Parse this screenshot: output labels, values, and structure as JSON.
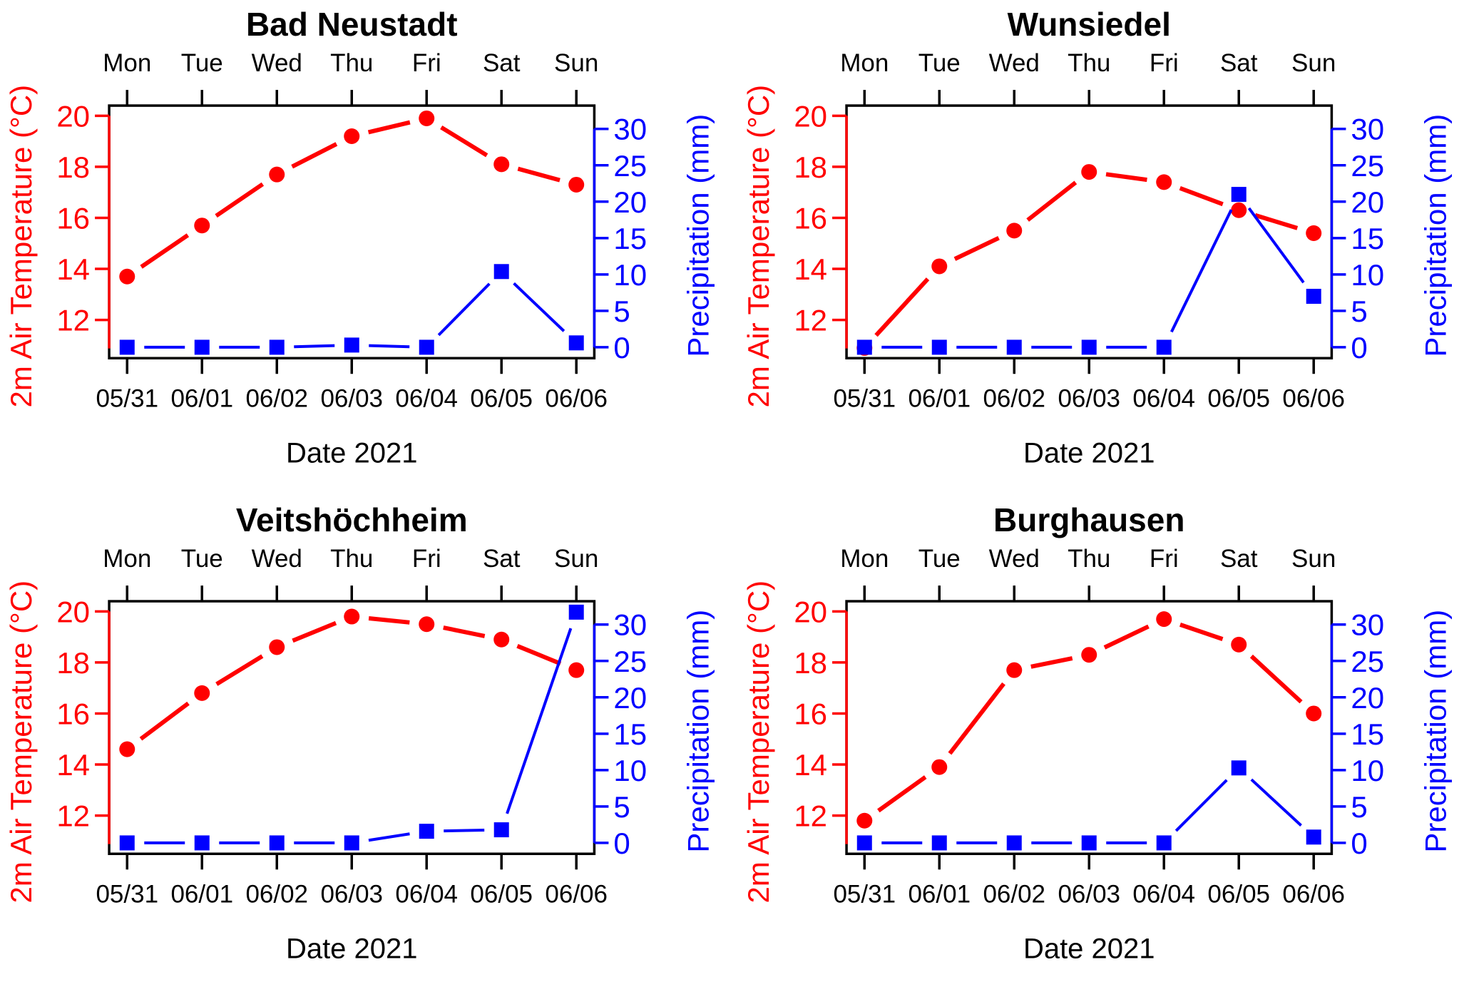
{
  "page": {
    "background": "#ffffff"
  },
  "shared": {
    "xlabel": "Date 2021",
    "ylabel_left": "2m Air Temperature (°C)",
    "ylabel_right": "Precipitation (mm)",
    "weekday_labels": [
      "Mon",
      "Tue",
      "Wed",
      "Thu",
      "Fri",
      "Sat",
      "Sun"
    ],
    "date_labels": [
      "05/31",
      "06/01",
      "06/02",
      "06/03",
      "06/04",
      "06/05",
      "06/06"
    ],
    "left_axis_ticks": [
      20,
      18,
      16,
      14,
      12
    ],
    "right_axis_ticks": [
      0,
      5,
      10,
      15,
      20,
      25,
      30
    ],
    "colors": {
      "temperature": "#ff0000",
      "precipitation": "#0000ff",
      "frame": "#000000",
      "text": "#000000"
    }
  },
  "chart_data": [
    {
      "type": "line",
      "title": "Bad Neustadt",
      "xlabel": "Date 2021",
      "categories": [
        "05/31",
        "06/01",
        "06/02",
        "06/03",
        "06/04",
        "06/05",
        "06/06"
      ],
      "weekday_labels": [
        "Mon",
        "Tue",
        "Wed",
        "Thu",
        "Fri",
        "Sat",
        "Sun"
      ],
      "left_axis": {
        "label": "2m Air Temperature (°C)",
        "ticks": [
          12,
          14,
          16,
          18,
          20
        ],
        "range": [
          10.5,
          20.4
        ],
        "color": "#ff0000"
      },
      "right_axis": {
        "label": "Precipitation (mm)",
        "ticks": [
          0,
          5,
          10,
          15,
          20,
          25,
          30
        ],
        "range": [
          -1.5,
          33.2
        ],
        "color": "#0000ff"
      },
      "series": [
        {
          "name": "2m Air Temperature (°C)",
          "axis": "left",
          "color": "#ff0000",
          "marker": "circle",
          "values": [
            13.7,
            15.7,
            17.7,
            19.2,
            19.9,
            18.1,
            17.3
          ]
        },
        {
          "name": "Precipitation (mm)",
          "axis": "right",
          "color": "#0000ff",
          "marker": "square",
          "values": [
            0,
            0,
            0,
            0.3,
            0,
            10.4,
            0.6
          ]
        }
      ]
    },
    {
      "type": "line",
      "title": "Wunsiedel",
      "xlabel": "Date 2021",
      "categories": [
        "05/31",
        "06/01",
        "06/02",
        "06/03",
        "06/04",
        "06/05",
        "06/06"
      ],
      "weekday_labels": [
        "Mon",
        "Tue",
        "Wed",
        "Thu",
        "Fri",
        "Sat",
        "Sun"
      ],
      "left_axis": {
        "label": "2m Air Temperature (°C)",
        "ticks": [
          12,
          14,
          16,
          18,
          20
        ],
        "range": [
          10.5,
          20.4
        ],
        "color": "#ff0000"
      },
      "right_axis": {
        "label": "Precipitation (mm)",
        "ticks": [
          0,
          5,
          10,
          15,
          20,
          25,
          30
        ],
        "range": [
          -1.5,
          33.2
        ],
        "color": "#0000ff"
      },
      "series": [
        {
          "name": "2m Air Temperature (°C)",
          "axis": "left",
          "color": "#ff0000",
          "marker": "circle",
          "values": [
            10.9,
            14.1,
            15.5,
            17.8,
            17.4,
            16.3,
            15.4
          ]
        },
        {
          "name": "Precipitation (mm)",
          "axis": "right",
          "color": "#0000ff",
          "marker": "square",
          "values": [
            0,
            0,
            0,
            0,
            0,
            21,
            7
          ]
        }
      ]
    },
    {
      "type": "line",
      "title": "Veitshöchheim",
      "xlabel": "Date 2021",
      "categories": [
        "05/31",
        "06/01",
        "06/02",
        "06/03",
        "06/04",
        "06/05",
        "06/06"
      ],
      "weekday_labels": [
        "Mon",
        "Tue",
        "Wed",
        "Thu",
        "Fri",
        "Sat",
        "Sun"
      ],
      "left_axis": {
        "label": "2m Air Temperature (°C)",
        "ticks": [
          12,
          14,
          16,
          18,
          20
        ],
        "range": [
          10.5,
          20.4
        ],
        "color": "#ff0000"
      },
      "right_axis": {
        "label": "Precipitation (mm)",
        "ticks": [
          0,
          5,
          10,
          15,
          20,
          25,
          30
        ],
        "range": [
          -1.5,
          33.2
        ],
        "color": "#0000ff"
      },
      "series": [
        {
          "name": "2m Air Temperature (°C)",
          "axis": "left",
          "color": "#ff0000",
          "marker": "circle",
          "values": [
            14.6,
            16.8,
            18.6,
            19.8,
            19.5,
            18.9,
            17.7
          ]
        },
        {
          "name": "Precipitation (mm)",
          "axis": "right",
          "color": "#0000ff",
          "marker": "square",
          "values": [
            0,
            0,
            0,
            0,
            1.6,
            1.8,
            31.7
          ]
        }
      ]
    },
    {
      "type": "line",
      "title": "Burghausen",
      "xlabel": "Date 2021",
      "categories": [
        "05/31",
        "06/01",
        "06/02",
        "06/03",
        "06/04",
        "06/05",
        "06/06"
      ],
      "weekday_labels": [
        "Mon",
        "Tue",
        "Wed",
        "Thu",
        "Fri",
        "Sat",
        "Sun"
      ],
      "left_axis": {
        "label": "2m Air Temperature (°C)",
        "ticks": [
          12,
          14,
          16,
          18,
          20
        ],
        "range": [
          10.5,
          20.4
        ],
        "color": "#ff0000"
      },
      "right_axis": {
        "label": "Precipitation (mm)",
        "ticks": [
          0,
          5,
          10,
          15,
          20,
          25,
          30
        ],
        "range": [
          -1.5,
          33.2
        ],
        "color": "#0000ff"
      },
      "series": [
        {
          "name": "2m Air Temperature (°C)",
          "axis": "left",
          "color": "#ff0000",
          "marker": "circle",
          "values": [
            11.8,
            13.9,
            17.7,
            18.3,
            19.7,
            18.7,
            16.0
          ]
        },
        {
          "name": "Precipitation (mm)",
          "axis": "right",
          "color": "#0000ff",
          "marker": "square",
          "values": [
            0,
            0,
            0,
            0,
            0,
            10.3,
            0.8
          ]
        }
      ]
    }
  ]
}
